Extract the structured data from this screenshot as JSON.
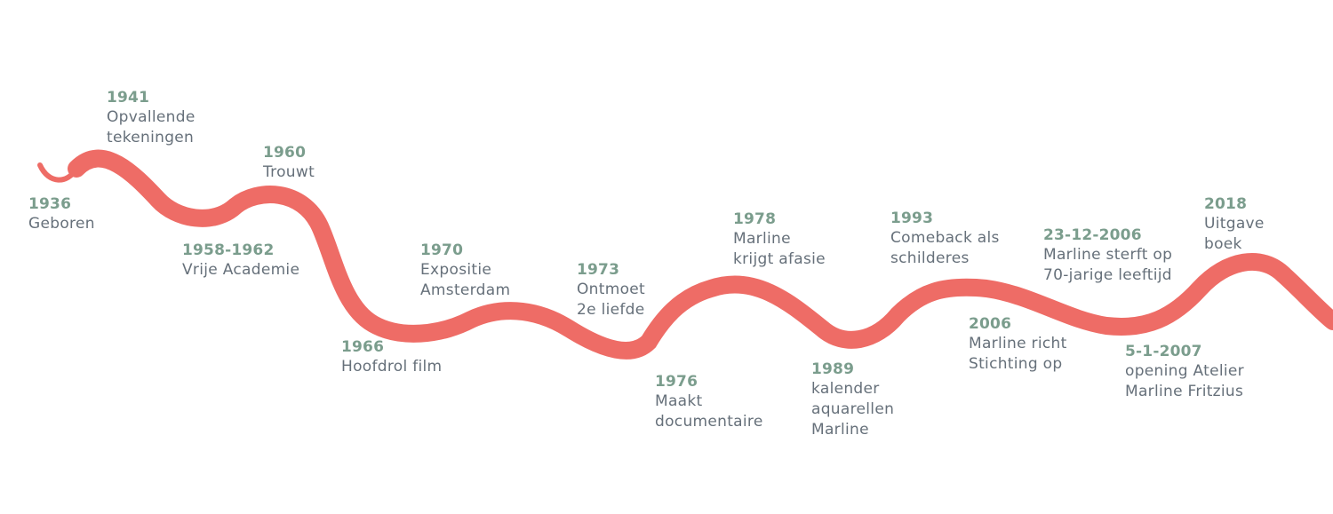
{
  "colors": {
    "ribbon": "#ee6c66",
    "year": "#7b9d8d",
    "text": "#66707a",
    "background": "#ffffff"
  },
  "events": [
    {
      "id": "1936",
      "year": "1936",
      "lines": [
        "Geboren"
      ]
    },
    {
      "id": "1941",
      "year": "1941",
      "lines": [
        "Opvallende",
        "tekeningen"
      ]
    },
    {
      "id": "1958-1962",
      "year": "1958-1962",
      "lines": [
        "Vrije Academie"
      ]
    },
    {
      "id": "1960",
      "year": "1960",
      "lines": [
        "Trouwt"
      ]
    },
    {
      "id": "1966",
      "year": "1966",
      "lines": [
        "Hoofdrol film"
      ]
    },
    {
      "id": "1970",
      "year": "1970",
      "lines": [
        "Expositie",
        "Amsterdam"
      ]
    },
    {
      "id": "1973",
      "year": "1973",
      "lines": [
        "Ontmoet",
        "2e liefde"
      ]
    },
    {
      "id": "1976",
      "year": "1976",
      "lines": [
        "Maakt",
        "documentaire"
      ]
    },
    {
      "id": "1978",
      "year": "1978",
      "lines": [
        "Marline",
        "krijgt afasie"
      ]
    },
    {
      "id": "1989",
      "year": "1989",
      "lines": [
        "kalender",
        "aquarellen",
        "Marline"
      ]
    },
    {
      "id": "1993",
      "year": "1993",
      "lines": [
        "Comeback als",
        "schilderes"
      ]
    },
    {
      "id": "2006",
      "year": "2006",
      "lines": [
        "Marline richt",
        "Stichting op"
      ]
    },
    {
      "id": "23-12-2006",
      "year": "23-12-2006",
      "lines": [
        "Marline sterft op",
        "70-jarige leeftijd"
      ]
    },
    {
      "id": "5-1-2007",
      "year": "5-1-2007",
      "lines": [
        "opening Atelier",
        "Marline Fritzius"
      ]
    },
    {
      "id": "2018",
      "year": "2018",
      "lines": [
        "Uitgave",
        "boek"
      ]
    }
  ]
}
